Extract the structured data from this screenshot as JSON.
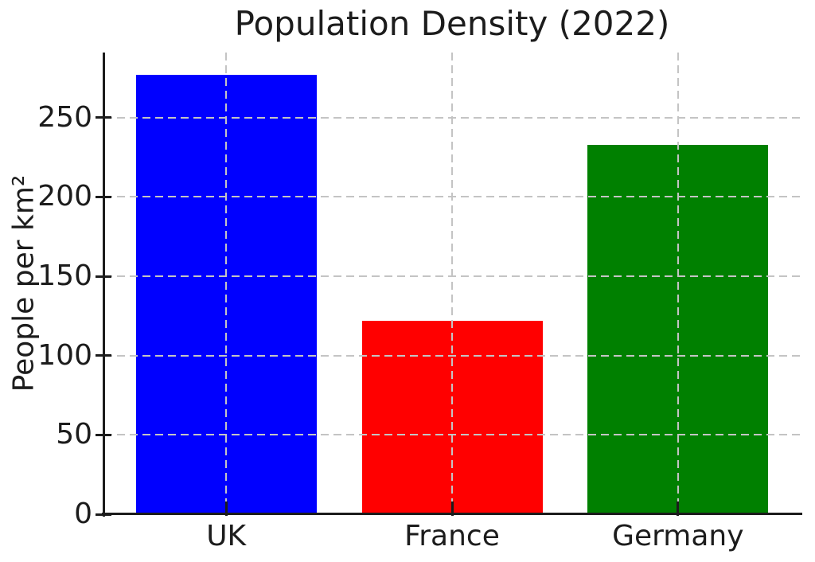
{
  "chart_data": {
    "type": "bar",
    "title": "Population Density (2022)",
    "categories": [
      "UK",
      "France",
      "Germany"
    ],
    "values": [
      277,
      122,
      233
    ],
    "bar_colors": [
      "#0000ff",
      "#ff0000",
      "#008000"
    ],
    "xlabel": "",
    "ylabel": "People per km²",
    "yticks": [
      0,
      50,
      100,
      150,
      200,
      250
    ],
    "ylim": [
      0,
      291
    ],
    "grid": {
      "visible": true,
      "style": "dashed",
      "color": "#c4c4c4",
      "axes": "both",
      "drawn_over_bars": true
    },
    "legend": null,
    "text_color": "#1c1c1c",
    "spine_color": "#1c1c1c"
  }
}
